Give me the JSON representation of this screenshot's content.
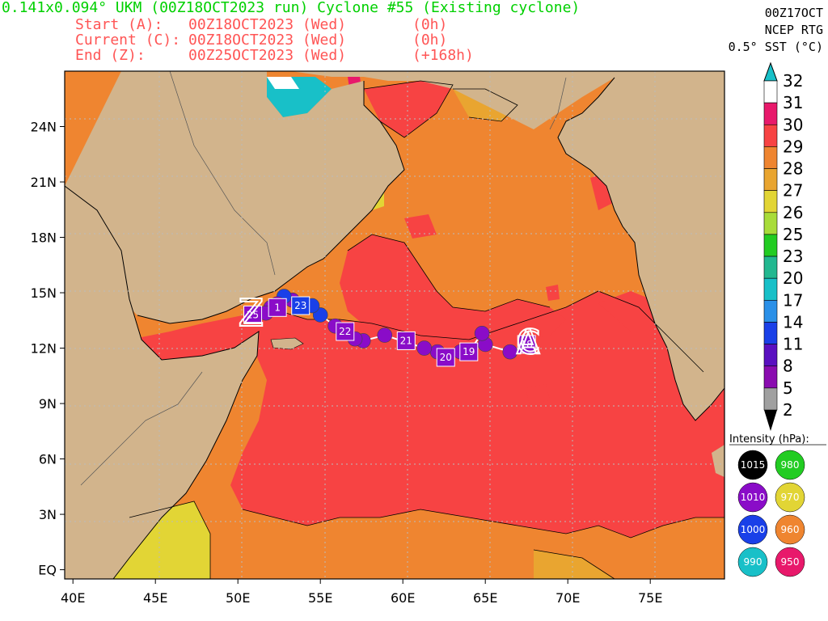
{
  "header": {
    "title": "0.141x0.094° UKM (00Z18OCT2023 run) Cyclone #55 (Existing cyclone)",
    "start_label": "Start (A):",
    "start_value": "00Z18OCT2023 (Wed)",
    "start_offset": "(0h)",
    "current_label": "Current (C):",
    "current_value": "00Z18OCT2023 (Wed)",
    "current_offset": "(0h)",
    "end_label": "End (Z):",
    "end_value": "00Z25OCT2023 (Wed)",
    "end_offset": "(+168h)"
  },
  "sst_header": {
    "line1": "00Z17OCT",
    "line2": "NCEP RTG",
    "line3": "0.5° SST (°C)"
  },
  "colorbar": {
    "labels": [
      "32",
      "31",
      "30",
      "29",
      "28",
      "27",
      "26",
      "25",
      "23",
      "20",
      "17",
      "14",
      "11",
      "8",
      "5",
      "2"
    ],
    "colors": [
      "#ffffff",
      "#e8196b",
      "#f74343",
      "#ef8530",
      "#e9a530",
      "#e2d535",
      "#a8dc3a",
      "#22cc22",
      "#22b890",
      "#18c0c8",
      "#2a90e8",
      "#1a40e8",
      "#5a10c0",
      "#8a0cb0",
      "#a0a0a0"
    ]
  },
  "axes": {
    "x_ticks": [
      "40E",
      "45E",
      "50E",
      "55E",
      "60E",
      "65E",
      "70E",
      "75E"
    ],
    "y_ticks": [
      "EQ",
      "3N",
      "6N",
      "9N",
      "12N",
      "15N",
      "18N",
      "21N",
      "24N"
    ]
  },
  "legend": {
    "title": "Intensity (hPa):",
    "items": [
      {
        "label": "1015",
        "color": "#000000",
        "text_color": "#ffffff"
      },
      {
        "label": "980",
        "color": "#22cc22",
        "text_color": "#ffffff"
      },
      {
        "label": "1010",
        "color": "#8a0cc8",
        "text_color": "#ffffff"
      },
      {
        "label": "970",
        "color": "#e2d535",
        "text_color": "#ffffff"
      },
      {
        "label": "1000",
        "color": "#1a40e8",
        "text_color": "#ffffff"
      },
      {
        "label": "960",
        "color": "#ef8530",
        "text_color": "#ffffff"
      },
      {
        "label": "990",
        "color": "#18c0c8",
        "text_color": "#ffffff"
      },
      {
        "label": "950",
        "color": "#e8196b",
        "text_color": "#ffffff"
      }
    ]
  },
  "track": {
    "points": [
      {
        "lon": 66.5,
        "lat": 11.8,
        "c": "#8a0cc8"
      },
      {
        "lon": 65.0,
        "lat": 12.2,
        "c": "#8a0cc8"
      },
      {
        "lon": 64.8,
        "lat": 12.8,
        "c": "#8a0cc8"
      },
      {
        "lon": 64.0,
        "lat": 11.8,
        "c": "#8a0cc8"
      },
      {
        "lon": 63.5,
        "lat": 11.8,
        "c": "#8a0cc8"
      },
      {
        "lon": 62.7,
        "lat": 11.6,
        "c": "#8a0cc8"
      },
      {
        "lon": 62.1,
        "lat": 11.8,
        "c": "#8a0cc8"
      },
      {
        "lon": 61.3,
        "lat": 12.0,
        "c": "#8a0cc8"
      },
      {
        "lon": 58.9,
        "lat": 12.7,
        "c": "#8a0cc8"
      },
      {
        "lon": 57.6,
        "lat": 12.4,
        "c": "#8a0cc8"
      },
      {
        "lon": 57.1,
        "lat": 12.5,
        "c": "#8a0cc8"
      },
      {
        "lon": 56.4,
        "lat": 12.9,
        "c": "#8a0cc8"
      },
      {
        "lon": 55.9,
        "lat": 13.2,
        "c": "#8a0cc8"
      },
      {
        "lon": 55.0,
        "lat": 13.8,
        "c": "#1a40e8"
      },
      {
        "lon": 54.5,
        "lat": 14.3,
        "c": "#1a40e8"
      },
      {
        "lon": 53.3,
        "lat": 14.6,
        "c": "#8a0cc8"
      },
      {
        "lon": 52.8,
        "lat": 14.8,
        "c": "#1a40e8"
      },
      {
        "lon": 52.4,
        "lat": 14.4,
        "c": "#8a0cc8"
      },
      {
        "lon": 52.0,
        "lat": 14.2,
        "c": "#8a0cc8"
      },
      {
        "lon": 51.7,
        "lat": 13.9,
        "c": "#8a0cc8"
      }
    ],
    "markers": [
      {
        "label": "18",
        "lon": 67.5,
        "lat": 12.2,
        "c": "#8a0cc8"
      },
      {
        "label": "19",
        "lon": 64.0,
        "lat": 11.8,
        "c": "#8a0cc8"
      },
      {
        "label": "20",
        "lon": 62.6,
        "lat": 11.5,
        "c": "#8a0cc8"
      },
      {
        "label": "21",
        "lon": 60.2,
        "lat": 12.4,
        "c": "#8a0cc8"
      },
      {
        "label": "22",
        "lon": 56.5,
        "lat": 12.9,
        "c": "#8a0cc8"
      },
      {
        "label": "23",
        "lon": 53.8,
        "lat": 14.3,
        "c": "#1a40e8"
      },
      {
        "label": "1",
        "lon": 52.4,
        "lat": 14.2,
        "c": "#8a0cc8"
      },
      {
        "label": "25",
        "lon": 50.9,
        "lat": 13.8,
        "c": "#8a0cc8"
      }
    ],
    "start_symbol": "A",
    "current_symbol": "C",
    "end_symbol": "Z"
  }
}
